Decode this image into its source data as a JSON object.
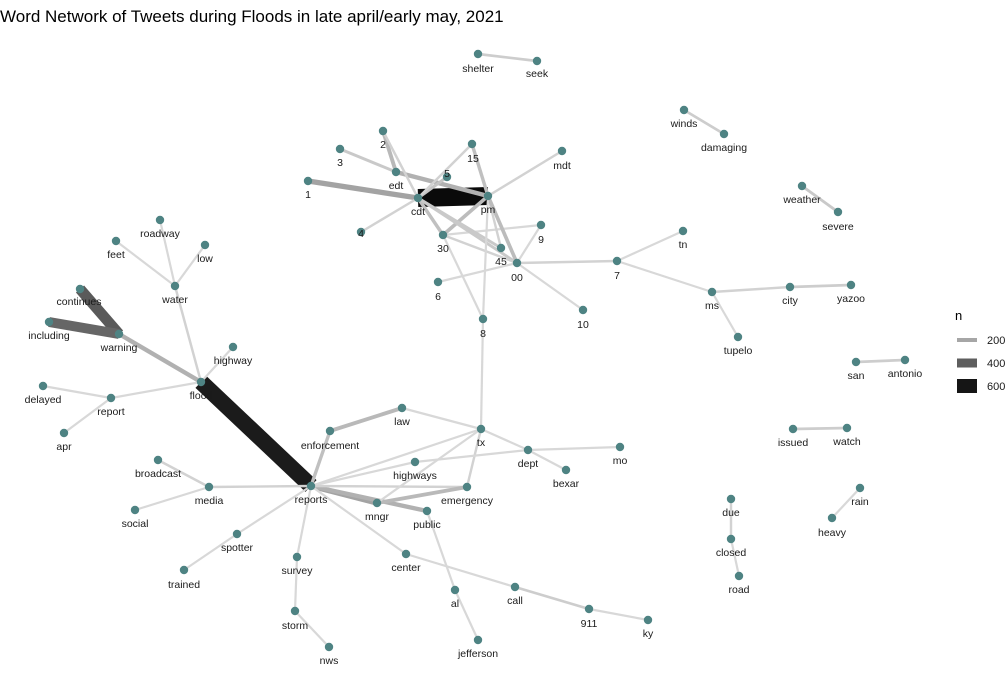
{
  "chart_data": {
    "type": "network",
    "title": "Word Network of Tweets during Floods in late april/early may, 2021",
    "node_color": "#4e8383",
    "legend": {
      "title": "n",
      "entries": [
        {
          "label": "200",
          "value": 200,
          "color": "#a6a6a6"
        },
        {
          "label": "400",
          "value": 400,
          "color": "#5e5e5e"
        },
        {
          "label": "600",
          "value": 600,
          "color": "#151515"
        }
      ]
    },
    "nodes": [
      "shelter",
      "seek",
      "winds",
      "damaging",
      "weather",
      "severe",
      "mdt",
      "15",
      "2",
      "3",
      "edt",
      "5",
      "1",
      "cdt",
      "pm",
      "4",
      "30",
      "9",
      "45",
      "00",
      "6",
      "tn",
      "7",
      "10",
      "8",
      "ms",
      "city",
      "yazoo",
      "tupelo",
      "san",
      "antonio",
      "roadway",
      "feet",
      "low",
      "water",
      "continues",
      "including",
      "warning",
      "highway",
      "flood",
      "delayed",
      "report",
      "apr",
      "law",
      "enforcement",
      "tx",
      "dept",
      "mo",
      "bexar",
      "highways",
      "emergency",
      "broadcast",
      "media",
      "reports",
      "mngr",
      "public",
      "social",
      "spotter",
      "trained",
      "survey",
      "center",
      "storm",
      "nws",
      "al",
      "jefferson",
      "call",
      "911",
      "ky",
      "issued",
      "watch",
      "rain",
      "heavy",
      "due",
      "closed",
      "road"
    ],
    "edges": [
      {
        "from": "shelter",
        "to": "seek",
        "n": 80
      },
      {
        "from": "winds",
        "to": "damaging",
        "n": 80
      },
      {
        "from": "weather",
        "to": "severe",
        "n": 90
      },
      {
        "from": "cdt",
        "to": "pm",
        "n": 720
      },
      {
        "from": "edt",
        "to": "pm",
        "n": 150
      },
      {
        "from": "2",
        "to": "edt",
        "n": 130
      },
      {
        "from": "3",
        "to": "edt",
        "n": 90
      },
      {
        "from": "1",
        "to": "cdt",
        "n": 190
      },
      {
        "from": "5",
        "to": "cdt",
        "n": 100
      },
      {
        "from": "15",
        "to": "pm",
        "n": 110
      },
      {
        "from": "15",
        "to": "cdt",
        "n": 70
      },
      {
        "from": "2",
        "to": "cdt",
        "n": 70
      },
      {
        "from": "mdt",
        "to": "pm",
        "n": 70
      },
      {
        "from": "4",
        "to": "cdt",
        "n": 70
      },
      {
        "from": "30",
        "to": "pm",
        "n": 120
      },
      {
        "from": "30",
        "to": "cdt",
        "n": 110
      },
      {
        "from": "9",
        "to": "30",
        "n": 60
      },
      {
        "from": "45",
        "to": "cdt",
        "n": 90
      },
      {
        "from": "45",
        "to": "pm",
        "n": 70
      },
      {
        "from": "00",
        "to": "pm",
        "n": 120
      },
      {
        "from": "00",
        "to": "cdt",
        "n": 90
      },
      {
        "from": "00",
        "to": "30",
        "n": 70
      },
      {
        "from": "00",
        "to": "7",
        "n": 70
      },
      {
        "from": "6",
        "to": "00",
        "n": 60
      },
      {
        "from": "10",
        "to": "00",
        "n": 60
      },
      {
        "from": "8",
        "to": "pm",
        "n": 60
      },
      {
        "from": "8",
        "to": "30",
        "n": 60
      },
      {
        "from": "9",
        "to": "00",
        "n": 60
      },
      {
        "from": "7",
        "to": "tn",
        "n": 60
      },
      {
        "from": "7",
        "to": "ms",
        "n": 60
      },
      {
        "from": "ms",
        "to": "city",
        "n": 70
      },
      {
        "from": "ms",
        "to": "tupelo",
        "n": 60
      },
      {
        "from": "city",
        "to": "yazoo",
        "n": 80
      },
      {
        "from": "san",
        "to": "antonio",
        "n": 80
      },
      {
        "from": "flood",
        "to": "reports",
        "n": 640
      },
      {
        "from": "continues",
        "to": "warning",
        "n": 420
      },
      {
        "from": "including",
        "to": "warning",
        "n": 380
      },
      {
        "from": "warning",
        "to": "flood",
        "n": 150
      },
      {
        "from": "water",
        "to": "flood",
        "n": 70
      },
      {
        "from": "roadway",
        "to": "water",
        "n": 60
      },
      {
        "from": "feet",
        "to": "water",
        "n": 60
      },
      {
        "from": "low",
        "to": "water",
        "n": 60
      },
      {
        "from": "highway",
        "to": "flood",
        "n": 60
      },
      {
        "from": "flood",
        "to": "report",
        "n": 60
      },
      {
        "from": "delayed",
        "to": "report",
        "n": 60
      },
      {
        "from": "apr",
        "to": "report",
        "n": 60
      },
      {
        "from": "reports",
        "to": "mngr",
        "n": 190
      },
      {
        "from": "reports",
        "to": "public",
        "n": 150
      },
      {
        "from": "reports",
        "to": "enforcement",
        "n": 110
      },
      {
        "from": "law",
        "to": "enforcement",
        "n": 130
      },
      {
        "from": "reports",
        "to": "highways",
        "n": 60
      },
      {
        "from": "reports",
        "to": "media",
        "n": 70
      },
      {
        "from": "broadcast",
        "to": "media",
        "n": 70
      },
      {
        "from": "social",
        "to": "media",
        "n": 60
      },
      {
        "from": "reports",
        "to": "emergency",
        "n": 70
      },
      {
        "from": "emergency",
        "to": "mngr",
        "n": 130
      },
      {
        "from": "reports",
        "to": "spotter",
        "n": 60
      },
      {
        "from": "trained",
        "to": "spotter",
        "n": 60
      },
      {
        "from": "reports",
        "to": "survey",
        "n": 60
      },
      {
        "from": "survey",
        "to": "storm",
        "n": 60
      },
      {
        "from": "storm",
        "to": "nws",
        "n": 60
      },
      {
        "from": "reports",
        "to": "center",
        "n": 60
      },
      {
        "from": "center",
        "to": "call",
        "n": 60
      },
      {
        "from": "call",
        "to": "911",
        "n": 80
      },
      {
        "from": "911",
        "to": "ky",
        "n": 60
      },
      {
        "from": "reports",
        "to": "tx",
        "n": 60
      },
      {
        "from": "law",
        "to": "tx",
        "n": 60
      },
      {
        "from": "tx",
        "to": "dept",
        "n": 60
      },
      {
        "from": "tx",
        "to": "8",
        "n": 60
      },
      {
        "from": "tx",
        "to": "emergency",
        "n": 70
      },
      {
        "from": "tx",
        "to": "mngr",
        "n": 60
      },
      {
        "from": "highways",
        "to": "dept",
        "n": 60
      },
      {
        "from": "dept",
        "to": "mo",
        "n": 60
      },
      {
        "from": "dept",
        "to": "bexar",
        "n": 60
      },
      {
        "from": "public",
        "to": "al",
        "n": 60
      },
      {
        "from": "al",
        "to": "jefferson",
        "n": 60
      },
      {
        "from": "issued",
        "to": "watch",
        "n": 80
      },
      {
        "from": "heavy",
        "to": "rain",
        "n": 60
      },
      {
        "from": "due",
        "to": "closed",
        "n": 70
      },
      {
        "from": "closed",
        "to": "road",
        "n": 60
      }
    ]
  }
}
